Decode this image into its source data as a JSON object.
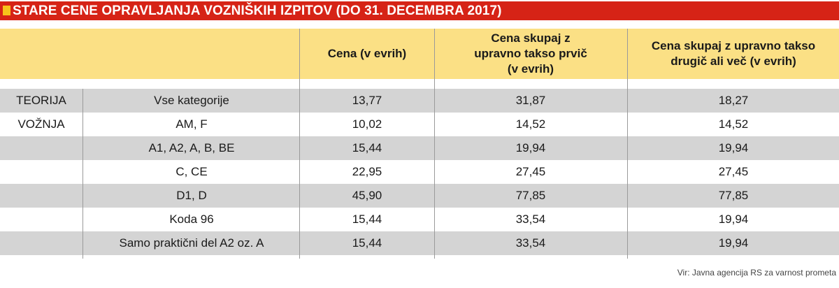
{
  "title": "STARE CENE OPRAVLJANJA VOZNIŠKIH IZPITOV (DO 31. DECEMBRA 2017)",
  "colors": {
    "title_bar": "#d62316",
    "title_square": "#f7c21b",
    "header_bg": "#fbe085",
    "row_shade": "#d4d4d4"
  },
  "table": {
    "headers": [
      "",
      "",
      "Cena (v evrih)",
      "Cena skupaj z upravno takso prvič (v evrih)",
      "Cena skupaj z upravno takso drugič ali več (v evrih)"
    ],
    "rows": [
      {
        "group": "TEORIJA",
        "category": "Vse kategorije",
        "cena": "13,77",
        "prvic": "31,87",
        "drugic": "18,27"
      },
      {
        "group": "VOŽNJA",
        "category": "AM, F",
        "cena": "10,02",
        "prvic": "14,52",
        "drugic": "14,52"
      },
      {
        "group": "",
        "category": "A1, A2, A, B, BE",
        "cena": "15,44",
        "prvic": "19,94",
        "drugic": "19,94"
      },
      {
        "group": "",
        "category": "C, CE",
        "cena": "22,95",
        "prvic": "27,45",
        "drugic": "27,45"
      },
      {
        "group": "",
        "category": "D1, D",
        "cena": "45,90",
        "prvic": "77,85",
        "drugic": "77,85"
      },
      {
        "group": "",
        "category": "Koda 96",
        "cena": "15,44",
        "prvic": "33,54",
        "drugic": "19,94"
      },
      {
        "group": "",
        "category": "Samo praktični del A2 oz. A",
        "cena": "15,44",
        "prvic": "33,54",
        "drugic": "19,94"
      }
    ]
  },
  "source": "Vir: Javna agencija RS za varnost prometa"
}
